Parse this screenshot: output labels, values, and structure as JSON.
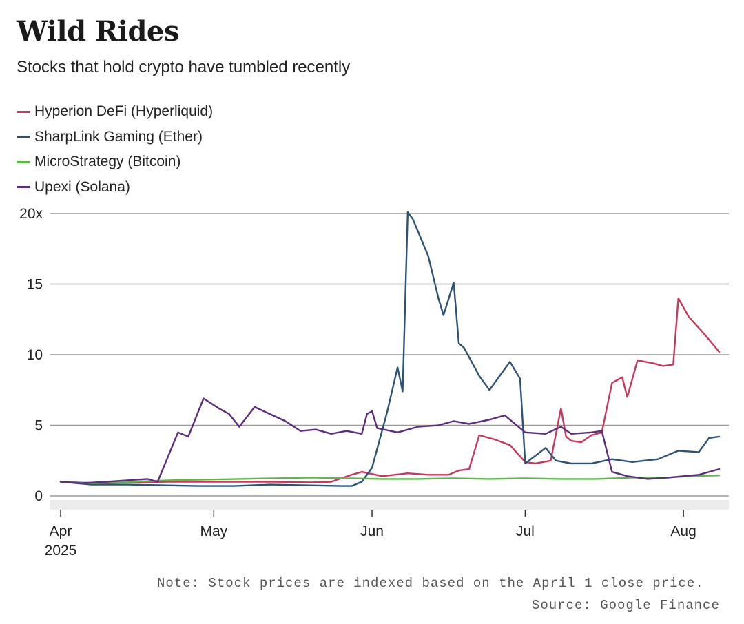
{
  "chart_data": {
    "type": "line",
    "title": "Wild Rides",
    "subtitle": "Stocks that hold crypto have tumbled recently",
    "xlabel": "",
    "ylabel": "",
    "xlim": [
      "2025-04-01",
      "2025-08-08"
    ],
    "ylim": [
      0,
      20
    ],
    "grid": true,
    "legend_position": "top-left",
    "x_ticks": [
      {
        "date": "2025-04-01",
        "label": "Apr",
        "sublabel": "2025"
      },
      {
        "date": "2025-05-01",
        "label": "May",
        "sublabel": ""
      },
      {
        "date": "2025-06-01",
        "label": "Jun",
        "sublabel": ""
      },
      {
        "date": "2025-07-01",
        "label": "Jul",
        "sublabel": ""
      },
      {
        "date": "2025-08-01",
        "label": "Aug",
        "sublabel": ""
      }
    ],
    "y_ticks": [
      {
        "value": 0,
        "label": "0"
      },
      {
        "value": 5,
        "label": "5"
      },
      {
        "value": 10,
        "label": "10"
      },
      {
        "value": 15,
        "label": "15"
      },
      {
        "value": 20,
        "label": "20x"
      }
    ],
    "series": [
      {
        "name": "Hyperion DeFi (Hyperliquid)",
        "color": "#c8385a",
        "points": [
          [
            "2025-04-01",
            1.0
          ],
          [
            "2025-04-08",
            0.9
          ],
          [
            "2025-04-15",
            0.95
          ],
          [
            "2025-04-22",
            1.0
          ],
          [
            "2025-04-29",
            1.0
          ],
          [
            "2025-05-06",
            1.0
          ],
          [
            "2025-05-13",
            1.0
          ],
          [
            "2025-05-20",
            0.95
          ],
          [
            "2025-05-24",
            1.0
          ],
          [
            "2025-05-28",
            1.5
          ],
          [
            "2025-05-30",
            1.7
          ],
          [
            "2025-06-03",
            1.4
          ],
          [
            "2025-06-08",
            1.6
          ],
          [
            "2025-06-12",
            1.5
          ],
          [
            "2025-06-16",
            1.5
          ],
          [
            "2025-06-18",
            1.8
          ],
          [
            "2025-06-20",
            1.9
          ],
          [
            "2025-06-22",
            4.3
          ],
          [
            "2025-06-25",
            4.0
          ],
          [
            "2025-06-28",
            3.6
          ],
          [
            "2025-07-01",
            2.4
          ],
          [
            "2025-07-03",
            2.3
          ],
          [
            "2025-07-06",
            2.5
          ],
          [
            "2025-07-08",
            6.2
          ],
          [
            "2025-07-09",
            4.2
          ],
          [
            "2025-07-10",
            3.9
          ],
          [
            "2025-07-12",
            3.8
          ],
          [
            "2025-07-14",
            4.3
          ],
          [
            "2025-07-16",
            4.5
          ],
          [
            "2025-07-18",
            8.0
          ],
          [
            "2025-07-20",
            8.4
          ],
          [
            "2025-07-21",
            7.0
          ],
          [
            "2025-07-23",
            9.6
          ],
          [
            "2025-07-26",
            9.4
          ],
          [
            "2025-07-28",
            9.2
          ],
          [
            "2025-07-30",
            9.3
          ],
          [
            "2025-07-31",
            14.0
          ],
          [
            "2025-08-02",
            12.7
          ],
          [
            "2025-08-05",
            11.5
          ],
          [
            "2025-08-08",
            10.2
          ]
        ]
      },
      {
        "name": "SharpLink Gaming (Ether)",
        "color": "#2d5278",
        "points": [
          [
            "2025-04-01",
            1.0
          ],
          [
            "2025-04-07",
            0.8
          ],
          [
            "2025-04-14",
            0.8
          ],
          [
            "2025-04-21",
            0.75
          ],
          [
            "2025-04-28",
            0.7
          ],
          [
            "2025-05-05",
            0.7
          ],
          [
            "2025-05-12",
            0.8
          ],
          [
            "2025-05-19",
            0.75
          ],
          [
            "2025-05-26",
            0.7
          ],
          [
            "2025-05-28",
            0.7
          ],
          [
            "2025-05-30",
            1.0
          ],
          [
            "2025-06-01",
            2.0
          ],
          [
            "2025-06-04",
            6.0
          ],
          [
            "2025-06-06",
            9.1
          ],
          [
            "2025-06-07",
            7.4
          ],
          [
            "2025-06-08",
            20.1
          ],
          [
            "2025-06-09",
            19.6
          ],
          [
            "2025-06-12",
            17.0
          ],
          [
            "2025-06-14",
            14.0
          ],
          [
            "2025-06-15",
            12.8
          ],
          [
            "2025-06-17",
            15.1
          ],
          [
            "2025-06-18",
            10.8
          ],
          [
            "2025-06-19",
            10.5
          ],
          [
            "2025-06-22",
            8.5
          ],
          [
            "2025-06-24",
            7.5
          ],
          [
            "2025-06-26",
            8.5
          ],
          [
            "2025-06-28",
            9.5
          ],
          [
            "2025-06-30",
            8.3
          ],
          [
            "2025-07-01",
            2.3
          ],
          [
            "2025-07-05",
            3.4
          ],
          [
            "2025-07-07",
            2.5
          ],
          [
            "2025-07-10",
            2.3
          ],
          [
            "2025-07-14",
            2.3
          ],
          [
            "2025-07-18",
            2.6
          ],
          [
            "2025-07-22",
            2.4
          ],
          [
            "2025-07-27",
            2.6
          ],
          [
            "2025-07-31",
            3.2
          ],
          [
            "2025-08-04",
            3.1
          ],
          [
            "2025-08-06",
            4.1
          ],
          [
            "2025-08-08",
            4.2
          ]
        ]
      },
      {
        "name": "MicroStrategy (Bitcoin)",
        "color": "#5ab946",
        "points": [
          [
            "2025-04-01",
            1.0
          ],
          [
            "2025-04-08",
            0.9
          ],
          [
            "2025-04-15",
            1.0
          ],
          [
            "2025-04-22",
            1.1
          ],
          [
            "2025-04-29",
            1.15
          ],
          [
            "2025-05-06",
            1.2
          ],
          [
            "2025-05-13",
            1.25
          ],
          [
            "2025-05-20",
            1.3
          ],
          [
            "2025-05-27",
            1.25
          ],
          [
            "2025-06-03",
            1.2
          ],
          [
            "2025-06-10",
            1.2
          ],
          [
            "2025-06-17",
            1.25
          ],
          [
            "2025-06-24",
            1.2
          ],
          [
            "2025-07-01",
            1.25
          ],
          [
            "2025-07-08",
            1.2
          ],
          [
            "2025-07-15",
            1.2
          ],
          [
            "2025-07-22",
            1.3
          ],
          [
            "2025-07-29",
            1.3
          ],
          [
            "2025-08-02",
            1.4
          ],
          [
            "2025-08-08",
            1.45
          ]
        ]
      },
      {
        "name": "Upexi (Solana)",
        "color": "#5e2d7d",
        "points": [
          [
            "2025-04-01",
            1.0
          ],
          [
            "2025-04-05",
            0.9
          ],
          [
            "2025-04-10",
            1.0
          ],
          [
            "2025-04-14",
            1.1
          ],
          [
            "2025-04-18",
            1.2
          ],
          [
            "2025-04-20",
            1.0
          ],
          [
            "2025-04-24",
            4.5
          ],
          [
            "2025-04-26",
            4.2
          ],
          [
            "2025-04-29",
            6.9
          ],
          [
            "2025-05-02",
            6.2
          ],
          [
            "2025-05-04",
            5.8
          ],
          [
            "2025-05-06",
            4.9
          ],
          [
            "2025-05-09",
            6.3
          ],
          [
            "2025-05-12",
            5.8
          ],
          [
            "2025-05-15",
            5.3
          ],
          [
            "2025-05-18",
            4.6
          ],
          [
            "2025-05-21",
            4.7
          ],
          [
            "2025-05-24",
            4.4
          ],
          [
            "2025-05-27",
            4.6
          ],
          [
            "2025-05-30",
            4.4
          ],
          [
            "2025-05-31",
            5.8
          ],
          [
            "2025-06-01",
            6.0
          ],
          [
            "2025-06-02",
            4.8
          ],
          [
            "2025-06-06",
            4.5
          ],
          [
            "2025-06-10",
            4.9
          ],
          [
            "2025-06-14",
            5.0
          ],
          [
            "2025-06-17",
            5.3
          ],
          [
            "2025-06-20",
            5.1
          ],
          [
            "2025-06-24",
            5.4
          ],
          [
            "2025-06-27",
            5.7
          ],
          [
            "2025-07-01",
            4.5
          ],
          [
            "2025-07-05",
            4.4
          ],
          [
            "2025-07-08",
            4.9
          ],
          [
            "2025-07-10",
            4.4
          ],
          [
            "2025-07-14",
            4.5
          ],
          [
            "2025-07-16",
            4.6
          ],
          [
            "2025-07-18",
            1.7
          ],
          [
            "2025-07-21",
            1.4
          ],
          [
            "2025-07-25",
            1.2
          ],
          [
            "2025-07-29",
            1.3
          ],
          [
            "2025-08-01",
            1.4
          ],
          [
            "2025-08-04",
            1.5
          ],
          [
            "2025-08-07",
            1.8
          ],
          [
            "2025-08-08",
            1.9
          ]
        ]
      }
    ]
  },
  "note": "Note: Stock prices are indexed based on the April 1 close price.",
  "source": "Source: Google Finance"
}
